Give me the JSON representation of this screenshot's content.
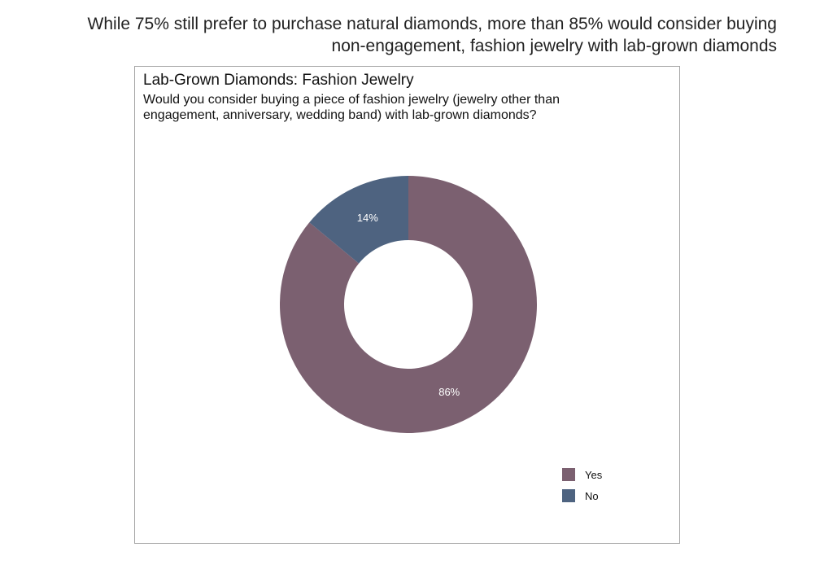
{
  "headline": {
    "line1": "While 75% still prefer to purchase natural diamonds, more than 85% would consider buying",
    "line2": "non-engagement, fashion jewelry with lab-grown diamonds"
  },
  "chart_data": {
    "type": "pie",
    "variant": "donut",
    "title": "Lab-Grown Diamonds: Fashion Jewelry",
    "subtitle_lines": [
      "Would you consider buying a piece of fashion jewelry (jewelry other than",
      "engagement, anniversary, wedding band) with lab-grown diamonds?"
    ],
    "slices": [
      {
        "name": "Yes",
        "value": 86,
        "label": "86%",
        "color": "#7b6070"
      },
      {
        "name": "No",
        "value": 14,
        "label": "14%",
        "color": "#4e6380"
      }
    ],
    "legend_position": "bottom-right",
    "label_color": "#ffffff"
  }
}
